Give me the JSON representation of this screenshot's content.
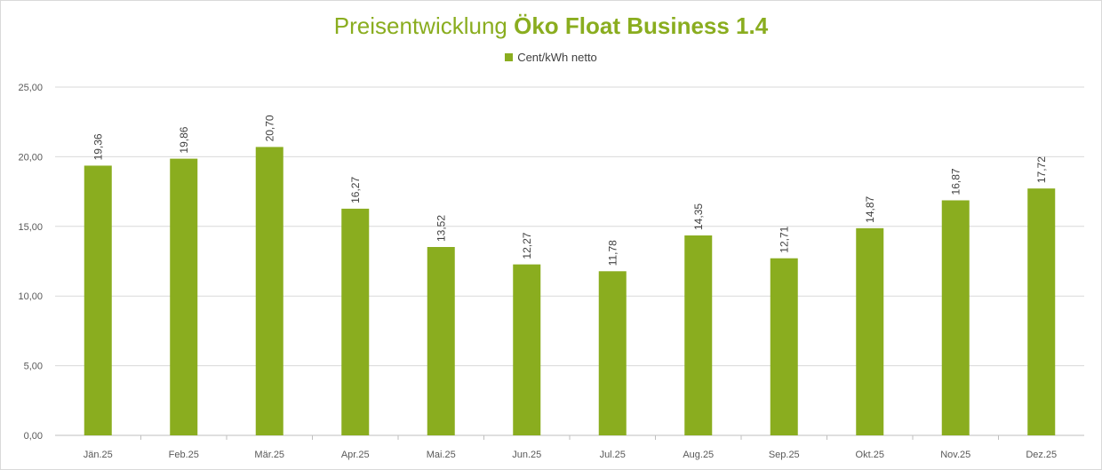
{
  "chart_data": {
    "type": "bar",
    "title_part1": "Preisentwicklung ",
    "title_part2": "Öko Float Business 1.4",
    "legend_label": "Cent/kWh netto",
    "categories": [
      "Jän.25",
      "Feb.25",
      "Mär.25",
      "Apr.25",
      "Mai.25",
      "Jun.25",
      "Jul.25",
      "Aug.25",
      "Sep.25",
      "Okt.25",
      "Nov.25",
      "Dez.25"
    ],
    "series": [
      {
        "name": "Cent/kWh netto",
        "values": [
          19.36,
          19.86,
          20.7,
          16.27,
          13.52,
          12.27,
          11.78,
          14.35,
          12.71,
          14.87,
          16.87,
          17.72
        ],
        "value_labels": [
          "19,36",
          "19,86",
          "20,70",
          "16,27",
          "13,52",
          "12,27",
          "11,78",
          "14,35",
          "12,71",
          "14,87",
          "16,87",
          "17,72"
        ]
      }
    ],
    "ylim": [
      0,
      25
    ],
    "yticks": [
      0,
      5,
      10,
      15,
      20,
      25
    ],
    "ytick_labels": [
      "0,00",
      "5,00",
      "10,00",
      "15,00",
      "20,00",
      "25,00"
    ],
    "grid": true,
    "legend_position": "top-center",
    "bar_color": "#8aad1f",
    "title_color": "#8aad1f"
  }
}
